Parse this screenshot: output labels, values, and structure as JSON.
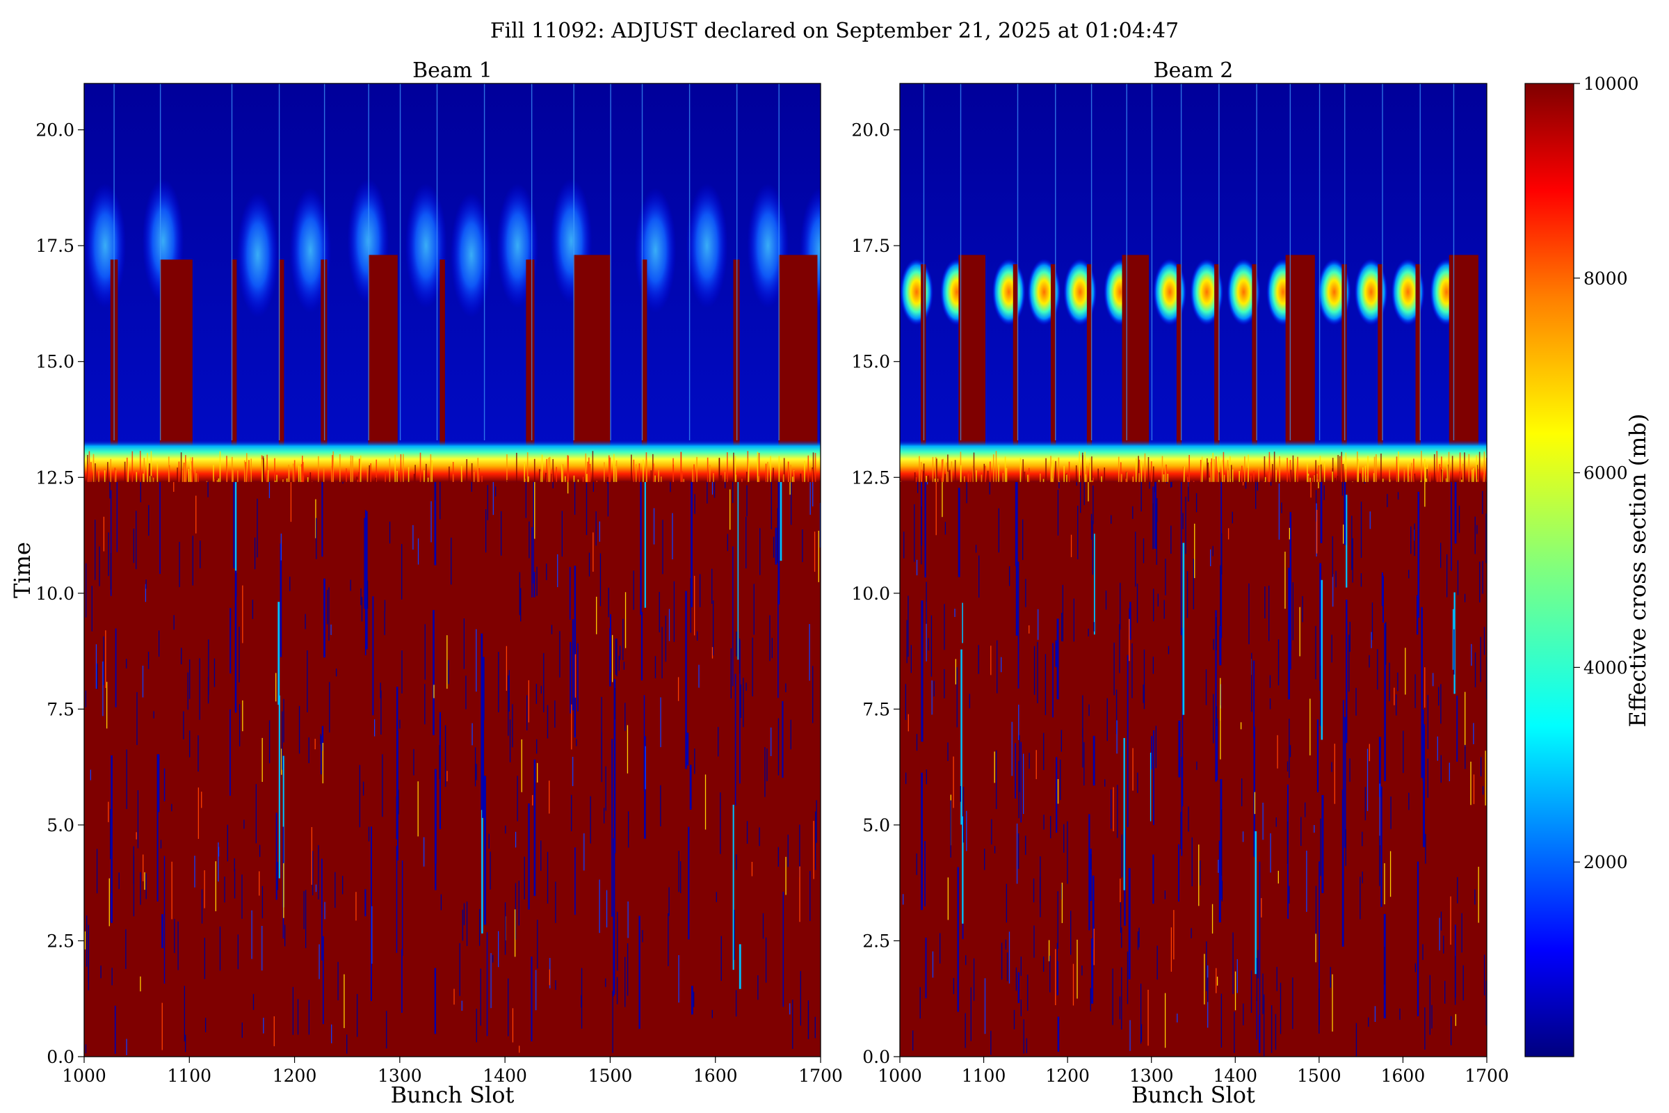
{
  "chart_data": {
    "type": "heatmap",
    "title": "Fill 11092: ADJUST declared on September 21, 2025 at 01:04:47",
    "colorbar": {
      "label": "Effective cross section (mb)",
      "range": [
        0,
        10000
      ],
      "ticks": [
        2000,
        4000,
        6000,
        8000,
        10000
      ],
      "tick_labels": [
        "2000",
        "4000",
        "6000",
        "8000",
        "10000"
      ],
      "colormap": [
        "#00007f",
        "#0000ff",
        "#007fff",
        "#00ffff",
        "#7fff7f",
        "#ffff00",
        "#ff7f00",
        "#ff0000",
        "#7f0000"
      ]
    },
    "panels": [
      {
        "title": "Beam 1",
        "xlabel": "Bunch Slot",
        "ylabel": "Time",
        "xlim": [
          1000,
          1700
        ],
        "ylim": [
          0,
          21
        ],
        "xticks": [
          1000,
          1100,
          1200,
          1300,
          1400,
          1500,
          1600,
          1700
        ],
        "xtick_labels": [
          "1000",
          "1100",
          "1200",
          "1300",
          "1400",
          "1500",
          "1600",
          "1700"
        ],
        "yticks": [
          0,
          2.5,
          5,
          7.5,
          10,
          12.5,
          15,
          17.5,
          20
        ],
        "ytick_labels": [
          "0.0",
          "2.5",
          "5.0",
          "7.5",
          "10.0",
          "12.5",
          "15.0",
          "17.5",
          "20.0"
        ],
        "high_until_time": 12.4,
        "transition_band": [
          12.4,
          13.3
        ],
        "gaps": [
          1028,
          1072,
          1140,
          1185,
          1228,
          1270,
          1300,
          1335,
          1380,
          1425,
          1465,
          1500,
          1530,
          1575,
          1620,
          1660
        ],
        "persistent_high": [
          [
            1072,
            1103,
            17.2
          ],
          [
            1270,
            1298,
            17.3
          ],
          [
            1465,
            1500,
            17.3
          ],
          [
            1660,
            1697,
            17.3
          ],
          [
            1025,
            1032,
            17.2
          ],
          [
            1140,
            1145,
            17.2
          ],
          [
            1185,
            1190,
            17.2
          ],
          [
            1225,
            1231,
            17.2
          ],
          [
            1338,
            1343,
            17.2
          ],
          [
            1420,
            1428,
            17.2
          ],
          [
            1530,
            1535,
            17.2
          ],
          [
            1617,
            1623,
            17.2
          ]
        ],
        "glows": [
          [
            1020,
            17.5
          ],
          [
            1075,
            17.6
          ],
          [
            1165,
            17.3
          ],
          [
            1215,
            17.4
          ],
          [
            1270,
            17.6
          ],
          [
            1325,
            17.5
          ],
          [
            1368,
            17.3
          ],
          [
            1412,
            17.5
          ],
          [
            1463,
            17.6
          ],
          [
            1543,
            17.4
          ],
          [
            1592,
            17.5
          ],
          [
            1650,
            17.5
          ],
          [
            1700,
            17.4
          ]
        ]
      },
      {
        "title": "Beam 2",
        "xlabel": "Bunch Slot",
        "ylabel": "",
        "xlim": [
          1000,
          1700
        ],
        "ylim": [
          0,
          21
        ],
        "xticks": [
          1000,
          1100,
          1200,
          1300,
          1400,
          1500,
          1600,
          1700
        ],
        "xtick_labels": [
          "1000",
          "1100",
          "1200",
          "1300",
          "1400",
          "1500",
          "1600",
          "1700"
        ],
        "yticks": [
          0,
          2.5,
          5,
          7.5,
          10,
          12.5,
          15,
          17.5,
          20
        ],
        "ytick_labels": [
          "0.0",
          "2.5",
          "5.0",
          "7.5",
          "10.0",
          "12.5",
          "15.0",
          "17.5",
          "20.0"
        ],
        "high_until_time": 12.4,
        "transition_band": [
          12.4,
          13.3
        ],
        "gaps": [
          1028,
          1072,
          1140,
          1185,
          1228,
          1270,
          1300,
          1335,
          1380,
          1425,
          1465,
          1500,
          1530,
          1575,
          1620,
          1660
        ],
        "persistent_high": [
          [
            1070,
            1102,
            17.3
          ],
          [
            1265,
            1297,
            17.3
          ],
          [
            1460,
            1495,
            17.3
          ],
          [
            1655,
            1690,
            17.3
          ],
          [
            1025,
            1031,
            17.1
          ],
          [
            1135,
            1141,
            17.1
          ],
          [
            1180,
            1186,
            17.1
          ],
          [
            1223,
            1229,
            17.1
          ],
          [
            1330,
            1336,
            17.1
          ],
          [
            1375,
            1381,
            17.1
          ],
          [
            1420,
            1426,
            17.1
          ],
          [
            1527,
            1533,
            17.1
          ],
          [
            1570,
            1576,
            17.1
          ],
          [
            1615,
            1621,
            17.1
          ]
        ],
        "glows": [
          [
            1020,
            16.5
          ],
          [
            1068,
            16.5
          ],
          [
            1130,
            16.5
          ],
          [
            1172,
            16.5
          ],
          [
            1215,
            16.5
          ],
          [
            1263,
            16.5
          ],
          [
            1322,
            16.5
          ],
          [
            1366,
            16.5
          ],
          [
            1410,
            16.5
          ],
          [
            1457,
            16.5
          ],
          [
            1518,
            16.5
          ],
          [
            1562,
            16.5
          ],
          [
            1606,
            16.5
          ],
          [
            1652,
            16.5
          ]
        ]
      }
    ]
  }
}
